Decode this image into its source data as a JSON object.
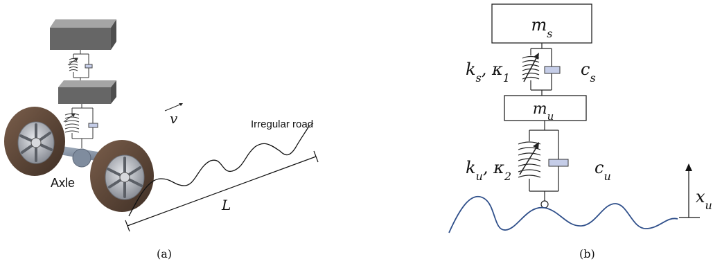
{
  "panel_a": {
    "caption": "(a)",
    "velocity_label": "v",
    "road_label": "Irregular road",
    "axle_label": "Axle",
    "length_label": "L"
  },
  "panel_b": {
    "caption": "(b)",
    "sprung_mass": {
      "base": "m",
      "sub": "s"
    },
    "unsprung_mass": {
      "base": "m",
      "sub": "u"
    },
    "upper_spring": {
      "base1": "k",
      "sub1": "s",
      "sep": ", ",
      "base2": "κ",
      "sub2": "1"
    },
    "upper_damper": {
      "base": "c",
      "sub": "s"
    },
    "lower_spring": {
      "base1": "k",
      "sub1": "u",
      "sep": ", ",
      "base2": "κ",
      "sub2": "2"
    },
    "lower_damper": {
      "base": "c",
      "sub": "u"
    },
    "displacement": {
      "base": "x",
      "sub": "u"
    }
  },
  "colors": {
    "road_line": "#2f4f8a",
    "damper_fill": "#c5cde8",
    "block_top": "#9a9a9a",
    "block_front": "#5e5e5e",
    "tire": "#5a4435",
    "rim": "#b8bcc4"
  }
}
